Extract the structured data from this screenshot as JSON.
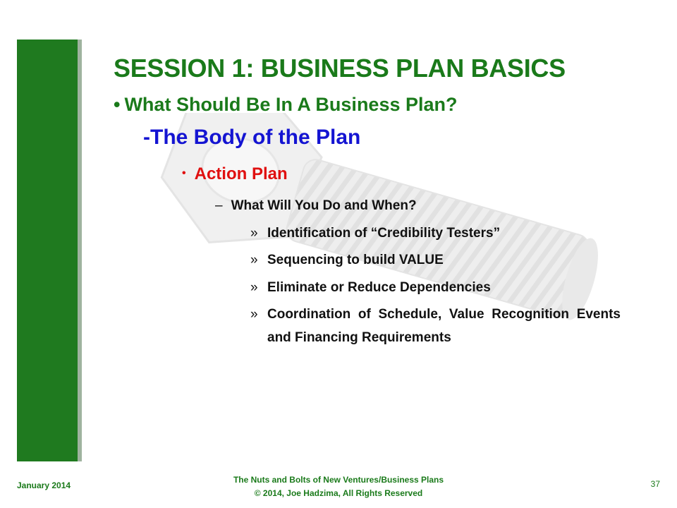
{
  "title": "SESSION 1:  BUSINESS PLAN BASICS",
  "subtitle": {
    "bullet": "•",
    "text": "What Should Be In A Business Plan?"
  },
  "section_heading": "-The Body of the Plan",
  "level1": {
    "bullet": "•",
    "text": "Action Plan"
  },
  "level2": {
    "bullet": "–",
    "text": "What Will You Do and When?"
  },
  "level3": [
    {
      "bullet": "»",
      "text": "Identification of “Credibility Testers”"
    },
    {
      "bullet": "»",
      "text": "Sequencing to build VALUE"
    },
    {
      "bullet": "»",
      "text": "Eliminate or Reduce Dependencies"
    },
    {
      "bullet": "»",
      "text": "Coordination of Schedule, Value Recognition Events and Financing Requirements"
    }
  ],
  "footer": {
    "date": "January 2014",
    "line1": "The Nuts and Bolts of New Ventures/Business Plans",
    "line2": "© 2014, Joe Hadzima, All Rights Reserved",
    "page_number": "37"
  },
  "colors": {
    "green": "#1a7a1a",
    "blue": "#1414d2",
    "red": "#e01010"
  }
}
